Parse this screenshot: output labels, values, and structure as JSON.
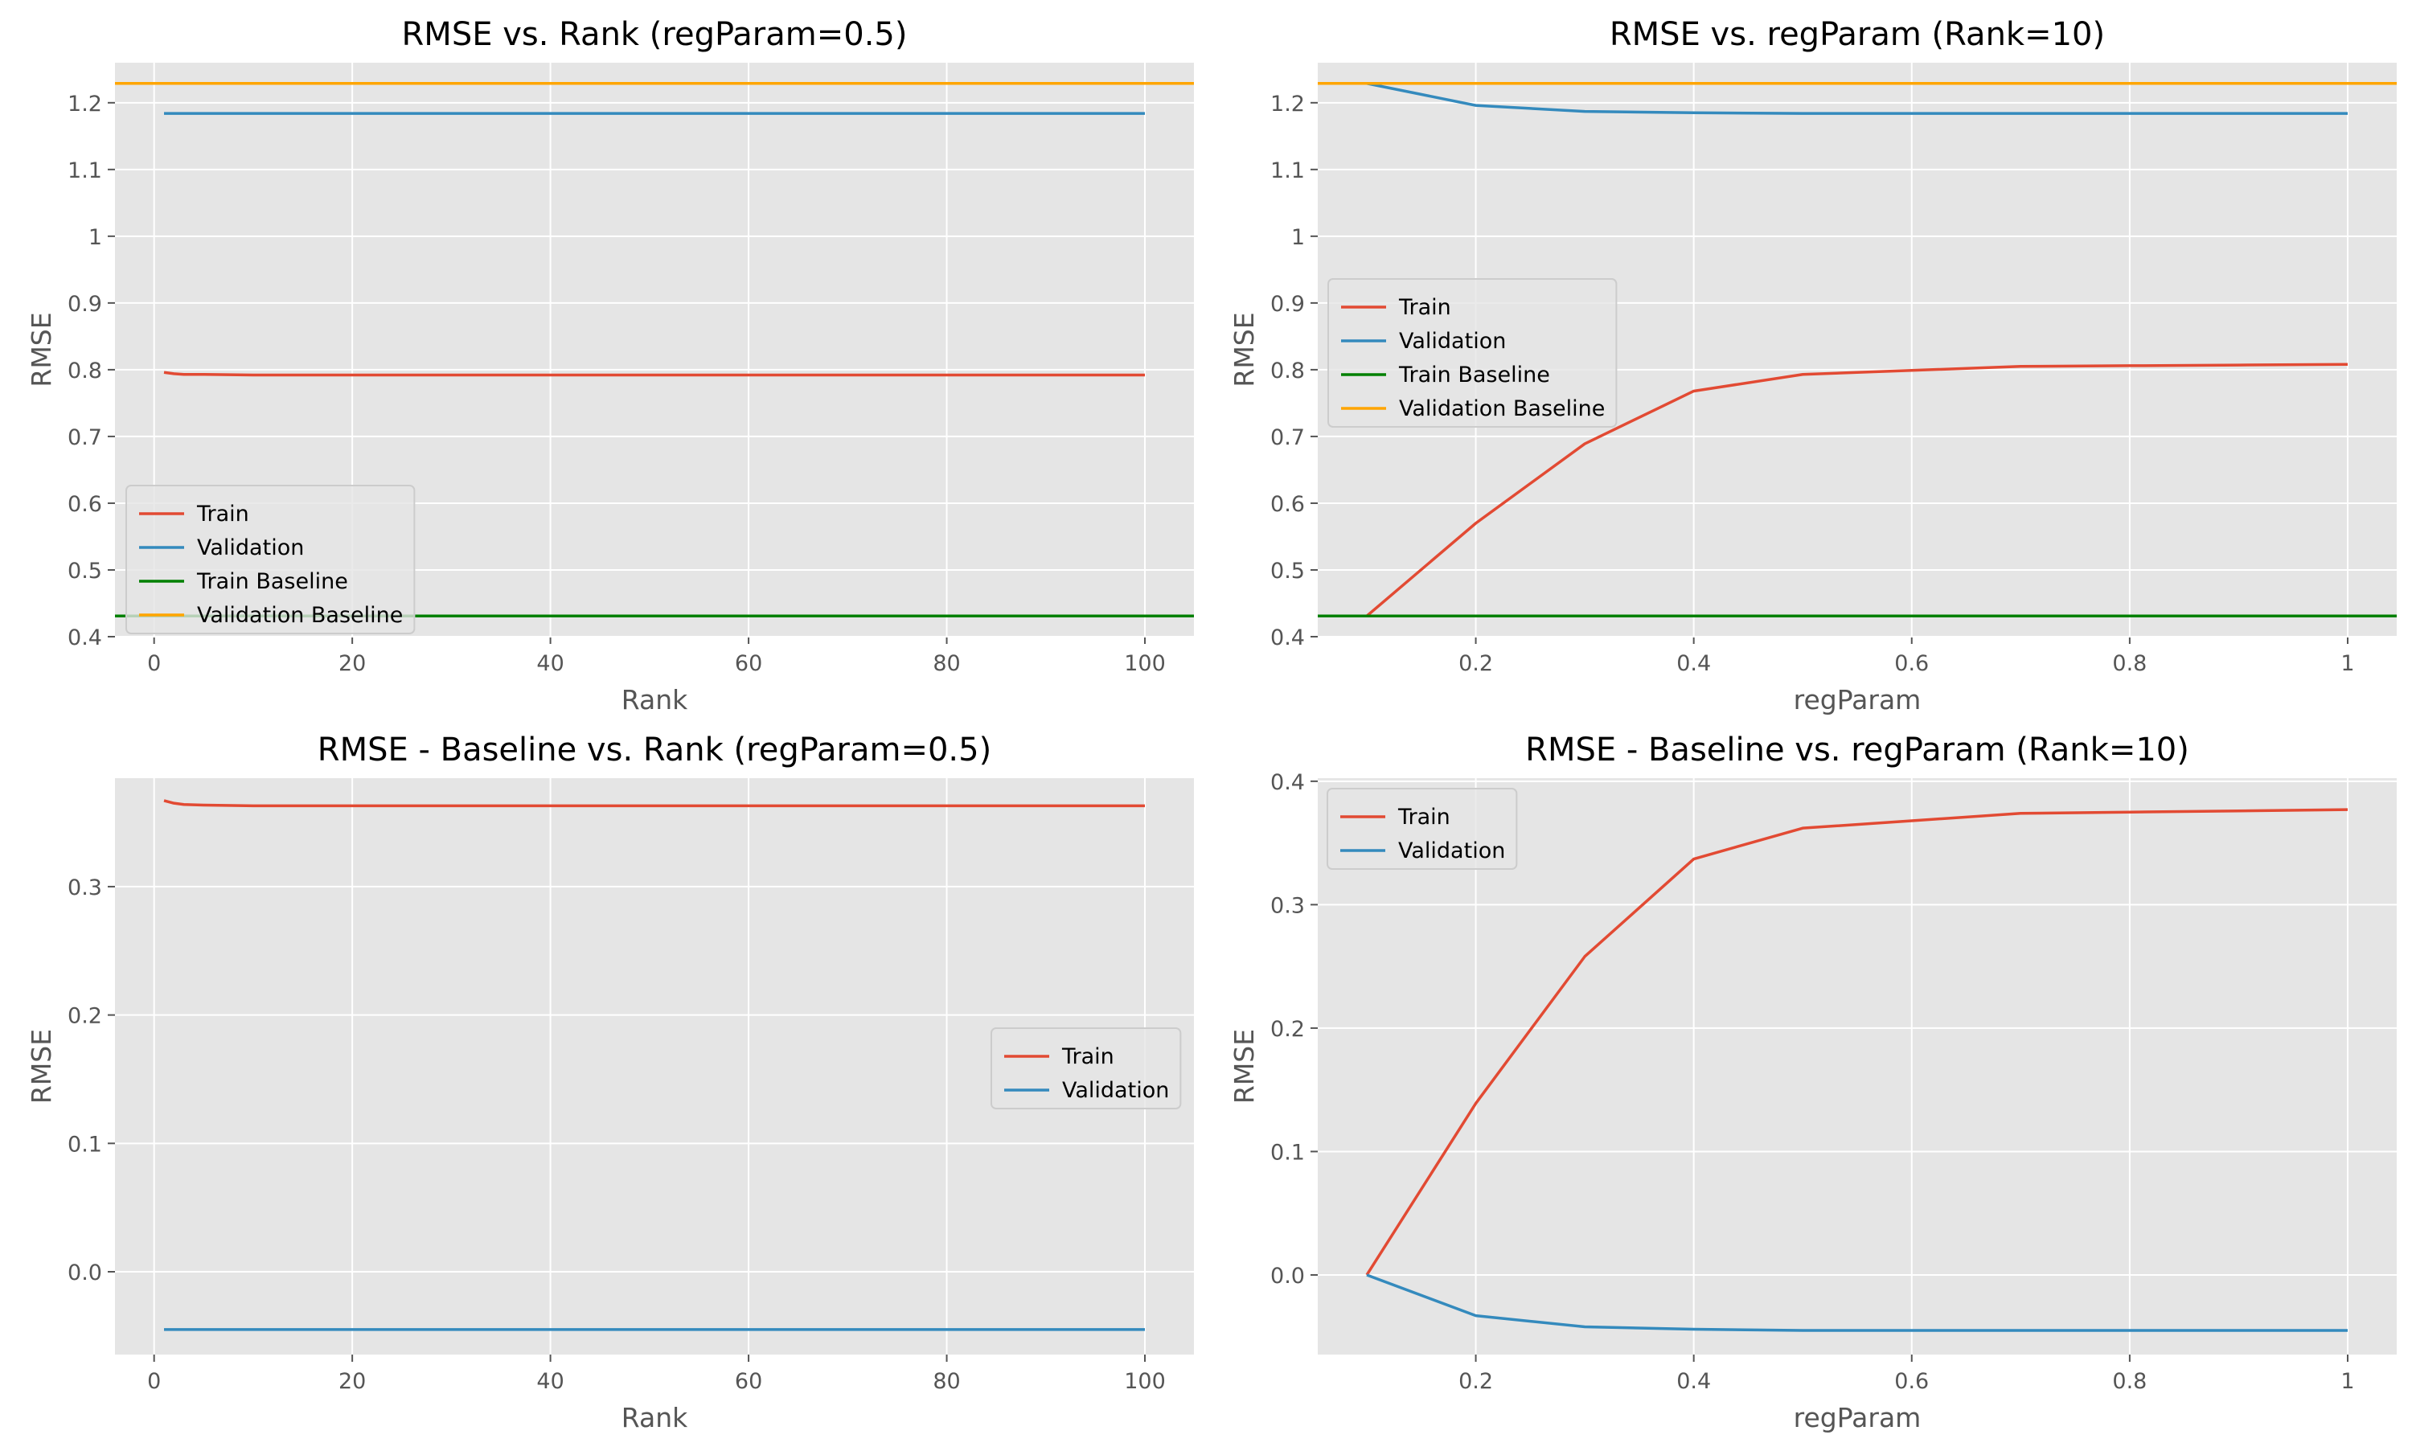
{
  "style": {
    "plot_bg": "#e5e5e5",
    "grid": "#ffffff",
    "train": "#e24a33",
    "validation": "#348abd",
    "train_baseline": "#008000",
    "validation_baseline": "#ffa500"
  },
  "chart_data": [
    {
      "type": "line",
      "title": "RMSE vs. Rank (regParam=0.5)",
      "xlabel": "Rank",
      "ylabel": "RMSE",
      "xlim": [
        -3.95,
        104.95
      ],
      "ylim": [
        0.4,
        1.26
      ],
      "xticks": [
        0,
        20,
        40,
        60,
        80,
        100
      ],
      "yticks": [
        0.4,
        0.5,
        0.6,
        0.7,
        0.8,
        0.9,
        1.0,
        1.1,
        1.2
      ],
      "grid": true,
      "legend": "lower-left",
      "series": [
        {
          "name": "Train",
          "color": "train",
          "x": [
            1,
            2,
            3,
            5,
            10,
            20,
            50,
            100
          ],
          "y": [
            0.796,
            0.794,
            0.793,
            0.793,
            0.792,
            0.792,
            0.792,
            0.792
          ]
        },
        {
          "name": "Validation",
          "color": "validation",
          "x": [
            1,
            100
          ],
          "y": [
            1.184,
            1.184
          ]
        },
        {
          "name": "Train Baseline",
          "color": "train_baseline",
          "hline": 0.431
        },
        {
          "name": "Validation Baseline",
          "color": "validation_baseline",
          "hline": 1.229
        }
      ]
    },
    {
      "type": "line",
      "title": "RMSE vs. regParam (Rank=10)",
      "xlabel": "regParam",
      "ylabel": "RMSE",
      "xlim": [
        0.055,
        1.045
      ],
      "ylim": [
        0.4,
        1.26
      ],
      "xticks": [
        0.2,
        0.4,
        0.6,
        0.8,
        1.0
      ],
      "yticks": [
        0.4,
        0.5,
        0.6,
        0.7,
        0.8,
        0.9,
        1.0,
        1.1,
        1.2
      ],
      "grid": true,
      "legend": "center-left",
      "series": [
        {
          "name": "Train",
          "color": "train",
          "x": [
            0.1,
            0.2,
            0.3,
            0.4,
            0.5,
            0.6,
            0.7,
            0.8,
            0.9,
            1.0
          ],
          "y": [
            0.431,
            0.57,
            0.689,
            0.768,
            0.793,
            0.799,
            0.805,
            0.806,
            0.807,
            0.808
          ]
        },
        {
          "name": "Validation",
          "color": "validation",
          "x": [
            0.1,
            0.2,
            0.3,
            0.4,
            0.5,
            0.6,
            0.7,
            0.8,
            0.9,
            1.0
          ],
          "y": [
            1.229,
            1.196,
            1.187,
            1.185,
            1.184,
            1.184,
            1.184,
            1.184,
            1.184,
            1.184
          ]
        },
        {
          "name": "Train Baseline",
          "color": "train_baseline",
          "hline": 0.431
        },
        {
          "name": "Validation Baseline",
          "color": "validation_baseline",
          "hline": 1.229
        }
      ]
    },
    {
      "type": "line",
      "title": "RMSE - Baseline vs. Rank (regParam=0.5)",
      "xlabel": "Rank",
      "ylabel": "RMSE",
      "xlim": [
        -3.95,
        104.95
      ],
      "ylim": [
        -0.0645,
        0.3845
      ],
      "xticks": [
        0,
        20,
        40,
        60,
        80,
        100
      ],
      "yticks": [
        0.0,
        0.1,
        0.2,
        0.3
      ],
      "ytick_labels": [
        "0.0",
        "0.1",
        "0.2",
        "0.3"
      ],
      "grid": true,
      "legend": "center-right",
      "series": [
        {
          "name": "Train",
          "color": "train",
          "x": [
            1,
            2,
            3,
            5,
            10,
            20,
            50,
            100
          ],
          "y": [
            0.367,
            0.365,
            0.364,
            0.3635,
            0.363,
            0.363,
            0.363,
            0.363
          ]
        },
        {
          "name": "Validation",
          "color": "validation",
          "x": [
            1,
            100
          ],
          "y": [
            -0.045,
            -0.045
          ]
        }
      ]
    },
    {
      "type": "line",
      "title": "RMSE - Baseline vs. regParam (Rank=10)",
      "xlabel": "regParam",
      "ylabel": "RMSE",
      "xlim": [
        0.055,
        1.045
      ],
      "ylim": [
        -0.0645,
        0.4025
      ],
      "xticks": [
        0.2,
        0.4,
        0.6,
        0.8,
        1.0
      ],
      "yticks": [
        0.0,
        0.1,
        0.2,
        0.3,
        0.4
      ],
      "ytick_labels": [
        "0.0",
        "0.1",
        "0.2",
        "0.3",
        "0.4"
      ],
      "grid": true,
      "legend": "top-left",
      "series": [
        {
          "name": "Train",
          "color": "train",
          "x": [
            0.1,
            0.2,
            0.3,
            0.4,
            0.5,
            0.6,
            0.7,
            0.8,
            0.9,
            1.0
          ],
          "y": [
            0.0,
            0.139,
            0.258,
            0.337,
            0.362,
            0.368,
            0.374,
            0.375,
            0.376,
            0.377
          ]
        },
        {
          "name": "Validation",
          "color": "validation",
          "x": [
            0.1,
            0.2,
            0.3,
            0.4,
            0.5,
            0.6,
            0.7,
            0.8,
            0.9,
            1.0
          ],
          "y": [
            0.0,
            -0.033,
            -0.042,
            -0.044,
            -0.045,
            -0.045,
            -0.045,
            -0.045,
            -0.045,
            -0.045
          ]
        }
      ]
    }
  ]
}
